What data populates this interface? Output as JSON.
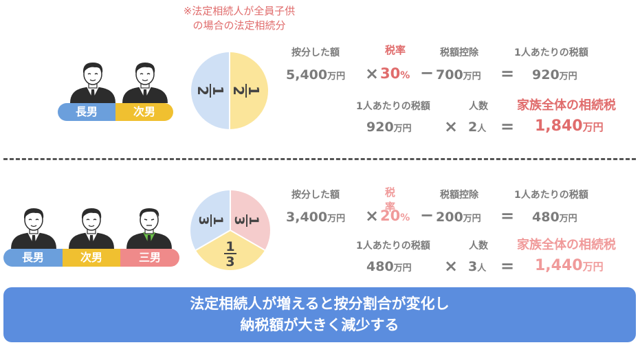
{
  "note": {
    "line1": "※法定相続人が全員子供",
    "line2": "の場合の法定相続分"
  },
  "case1": {
    "people": [
      "長男",
      "次男"
    ],
    "fraction": {
      "num": "1",
      "den": "2"
    },
    "row1": {
      "label_amount": "按分した額",
      "amount": "5,400",
      "unit": "万円",
      "label_rate": "税率",
      "rate": "30",
      "rate_unit": "%",
      "label_deduction": "税額控除",
      "deduction": "700",
      "label_per": "1人あたりの税額",
      "per": "920"
    },
    "row2": {
      "label_per": "1人あたりの税額",
      "per": "920",
      "unit": "万円",
      "label_count": "人数",
      "count": "2",
      "count_unit": "人",
      "label_total": "家族全体の相続税",
      "total": "1,840"
    }
  },
  "case2": {
    "people": [
      "長男",
      "次男",
      "三男"
    ],
    "fraction": {
      "num": "1",
      "den": "3"
    },
    "row1": {
      "label_amount": "按分した額",
      "amount": "3,400",
      "unit": "万円",
      "label_rate": "税率",
      "rate": "20",
      "rate_unit": "%",
      "label_deduction": "税額控除",
      "deduction": "200",
      "label_per": "1人あたりの税額",
      "per": "480"
    },
    "row2": {
      "label_per": "1人あたりの税額",
      "per": "480",
      "unit": "万円",
      "label_count": "人数",
      "count": "3",
      "count_unit": "人",
      "label_total": "家族全体の相続税",
      "total": "1,440"
    }
  },
  "operators": {
    "times": "×",
    "minus": "−",
    "equals": "="
  },
  "banner": {
    "line1": "法定相続人が増えると按分割合が変化し",
    "line2": "納税額が大きく減少する"
  },
  "colors": {
    "blue": "#6b9fdc",
    "yellow": "#f0c030",
    "pink": "#ef8a8a",
    "red": "#e06c6c",
    "banner": "#5b8dde",
    "pie_blue": "#cfe0f5",
    "pie_yellow": "#fbe59a",
    "pie_pink": "#f5cccc"
  },
  "icons": [
    "man-in-suit-icon"
  ]
}
